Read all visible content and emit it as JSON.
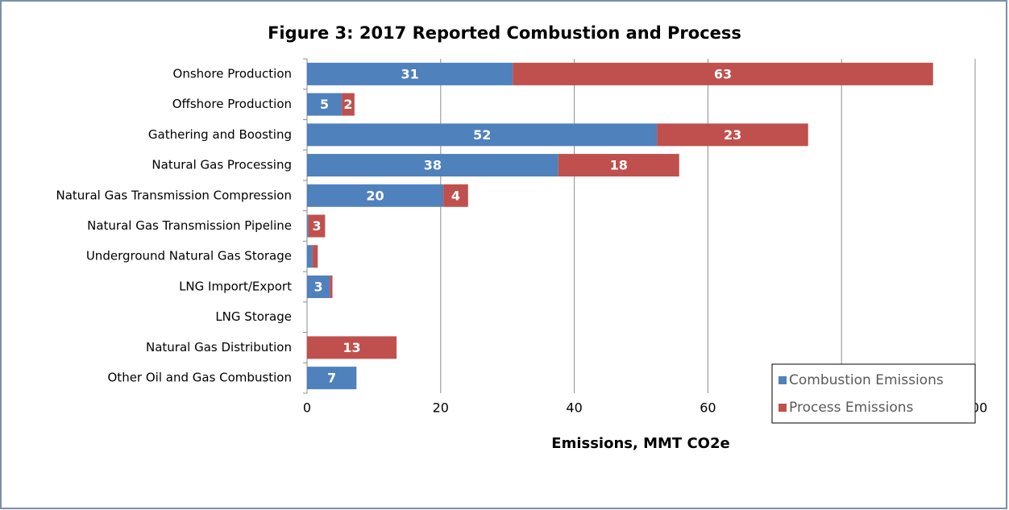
{
  "chart_data": {
    "type": "bar",
    "orientation": "horizontal",
    "stacked": true,
    "title": "Figure 3: 2017 Reported Combustion and Process",
    "xlabel": "Emissions, MMT CO2e",
    "categories": [
      "Onshore Production",
      "Offshore Production",
      "Gathering and Boosting",
      "Natural Gas Processing",
      "Natural Gas Transmission Compression",
      "Natural Gas Transmission Pipeline",
      "Underground Natural Gas Storage",
      "LNG Import/Export",
      "LNG Storage",
      "Natural Gas Distribution",
      "Other Oil and Gas Combustion"
    ],
    "series": [
      {
        "name": "Combustion Emissions",
        "color": "#4f81bd",
        "values": [
          30.8,
          5.2,
          52.4,
          37.6,
          20.4,
          0.2,
          0.8,
          3.4,
          0,
          0,
          7.4
        ],
        "value_labels": [
          "31",
          "5",
          "52",
          "38",
          "20",
          null,
          null,
          "3",
          null,
          null,
          "7"
        ]
      },
      {
        "name": "Process Emissions",
        "color": "#c0504d",
        "values": [
          62.9,
          1.9,
          22.6,
          18.1,
          3.7,
          2.5,
          0.8,
          0.4,
          0,
          13.4,
          0
        ],
        "value_labels": [
          "63",
          "2",
          "23",
          "18",
          "4",
          "3",
          null,
          null,
          null,
          "13",
          null
        ]
      }
    ],
    "xlim": [
      0,
      100
    ],
    "xticks": [
      0,
      20,
      40,
      60,
      80,
      100
    ],
    "grid": true,
    "legend": "bottom-right"
  }
}
